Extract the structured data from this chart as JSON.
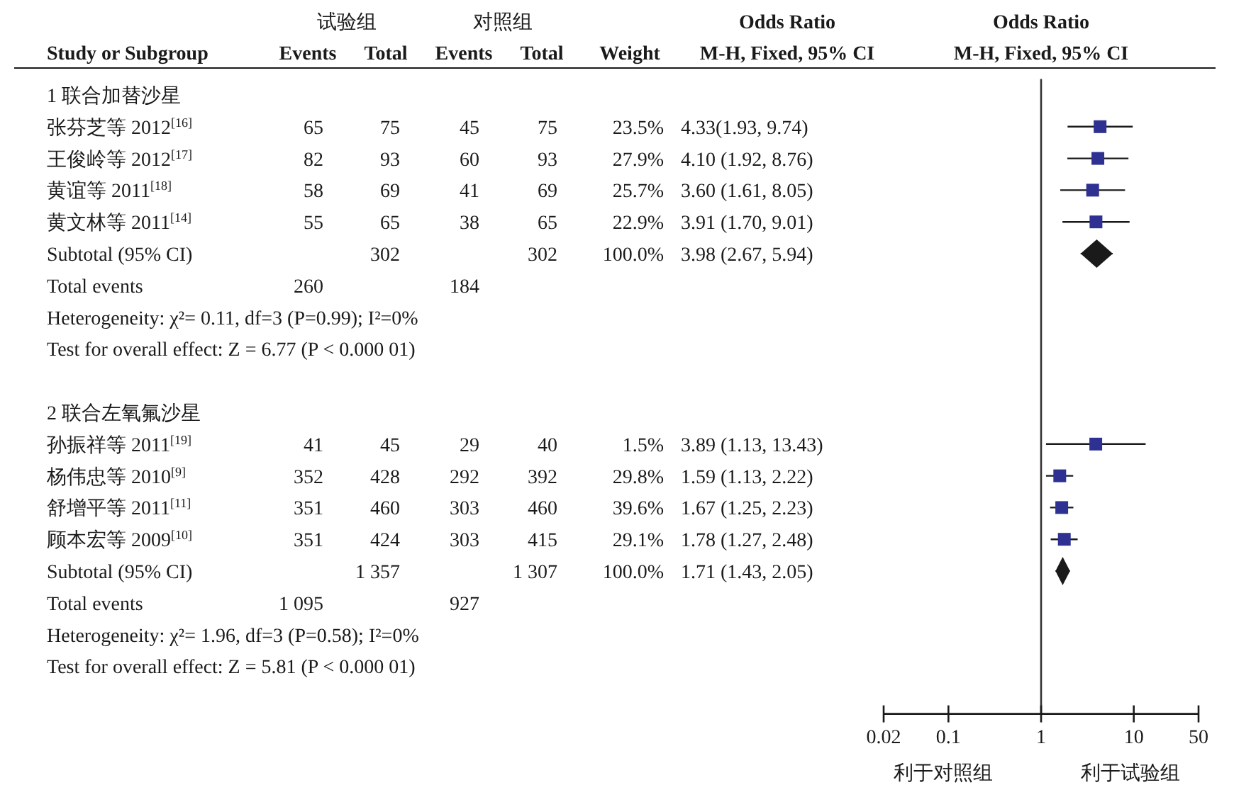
{
  "chart_data": [
    {
      "type": "other",
      "categories": [
        "Study or Subgroup",
        "Events",
        "Total",
        "Events",
        "Total",
        "Weight",
        "Odds Ratio\nM-H, Fixed, 95% CI"
      ],
      "annotations": [
        "试验组",
        "对照组"
      ],
      "y_categories": [
        "1 联合加替沙星",
        "张芬芝等 2012$^{[16]}$",
        "王俊岭等 2012$^{[17]}$",
        "黄谊等 2011$^{[18]}$",
        "黄文林等 2011$^{[14]}$",
        "Subtotal (95% CI)",
        "Total events",
        "Heterogeneity: χ²= 0.11, df=3 (P=0.99); I²=0%",
        "Test for overall effect: Z = 6.77 (P < 0.000 01)",
        null,
        "2 联合左氧氟沙星",
        "孙振祥等 2011$^{[19]}$",
        "杨伟忠等 2010$^{[9]}$",
        "舒增平等 2011$^{[11]}$",
        "顾本宏等 2009$^{[10]}$",
        "Subtotal (95% CI)",
        "Total events",
        "Heterogeneity: χ²= 1.96, df=3 (P=0.58); I²=0%",
        "Test for overall effect: Z = 5.81 (P < 0.000 01)"
      ],
      "cell_labels": [
        [
          null,
          null,
          null,
          null,
          null,
          null
        ],
        [
          "65",
          "75",
          "45",
          "75",
          "23.5%",
          "4.33(1.93, 9.74)"
        ],
        [
          "82",
          "93",
          "60",
          "93",
          "27.9%",
          "4.10 (1.92, 8.76)"
        ],
        [
          "58",
          "69",
          "41",
          "69",
          "25.7%",
          "3.60 (1.61, 8.05)"
        ],
        [
          "55",
          "65",
          "38",
          "65",
          "22.9%",
          "3.91 (1.70, 9.01)"
        ],
        [
          null,
          "302",
          null,
          "302",
          "100.0%",
          "3.98 (2.67, 5.94)"
        ],
        [
          "260",
          null,
          "184",
          null,
          null,
          null
        ],
        [
          null,
          null,
          null,
          null,
          null,
          null
        ],
        [
          null,
          null,
          null,
          null,
          null,
          null
        ],
        [
          null,
          null,
          null,
          null,
          null,
          null
        ],
        [
          null,
          null,
          null,
          null,
          null,
          null
        ],
        [
          "41",
          "45",
          "29",
          "40",
          "1.5%",
          "3.89 (1.13, 13.43)"
        ],
        [
          "352",
          "428",
          "292",
          "392",
          "29.8%",
          "1.59 (1.13, 2.22)"
        ],
        [
          "351",
          "460",
          "303",
          "460",
          "39.6%",
          "1.67 (1.25, 2.23)"
        ],
        [
          "351",
          "424",
          "303",
          "415",
          "29.1%",
          "1.78 (1.27, 2.48)"
        ],
        [
          null,
          "1 357",
          null,
          "1 307",
          "100.0%",
          "1.71 (1.43, 2.05)"
        ],
        [
          "1 095",
          null,
          "927",
          null,
          null,
          null
        ],
        [
          null,
          null,
          null,
          null,
          null,
          null
        ],
        [
          null,
          null,
          null,
          null,
          null,
          null
        ]
      ]
    },
    {
      "type": "scatter",
      "title": "Odds Ratio",
      "subtitle": "M-H, Fixed, 95% CI",
      "orientation": "horizontal",
      "categories": [
        null,
        null,
        null,
        null,
        null,
        null,
        null,
        null,
        null,
        null,
        null,
        null,
        null,
        null,
        null,
        null,
        null,
        null,
        null,
        null
      ],
      "series": [
        {
          "type": "scatter",
          "marker": "square",
          "color": "#2e3192",
          "values": [
            null,
            4.33,
            4.1,
            3.6,
            3.91,
            null,
            null,
            null,
            null,
            null,
            null,
            3.89,
            1.59,
            1.67,
            1.78,
            null,
            null,
            null,
            null,
            null
          ],
          "errors": [
            null,
            [
              1.93,
              9.74
            ],
            [
              1.92,
              8.76
            ],
            [
              1.61,
              8.05
            ],
            [
              1.7,
              9.01
            ],
            null,
            null,
            null,
            null,
            null,
            null,
            [
              1.13,
              13.43
            ],
            [
              1.13,
              2.22
            ],
            [
              1.25,
              2.23
            ],
            [
              1.27,
              2.48
            ],
            null,
            null,
            null,
            null,
            null
          ]
        },
        {
          "type": "scatter",
          "marker": "diamond",
          "color": "#1a1a1a",
          "values": [
            null,
            null,
            null,
            null,
            null,
            3.98,
            null,
            null,
            null,
            null,
            null,
            null,
            null,
            null,
            null,
            1.71,
            null,
            null,
            null,
            null
          ],
          "errors": [
            null,
            null,
            null,
            null,
            null,
            [
              2.67,
              5.94
            ],
            null,
            null,
            null,
            null,
            null,
            null,
            null,
            null,
            null,
            [
              1.43,
              2.05
            ],
            null,
            null,
            null,
            null
          ]
        }
      ],
      "xlim": [
        0.02,
        50
      ],
      "xticks": [
        0.02,
        0.1,
        1,
        10,
        50
      ],
      "log": "x",
      "ref_lines": [
        {
          "axis": "x",
          "value": 1
        }
      ],
      "annotations": [
        "利于对照组",
        "利于试验组"
      ]
    }
  ]
}
